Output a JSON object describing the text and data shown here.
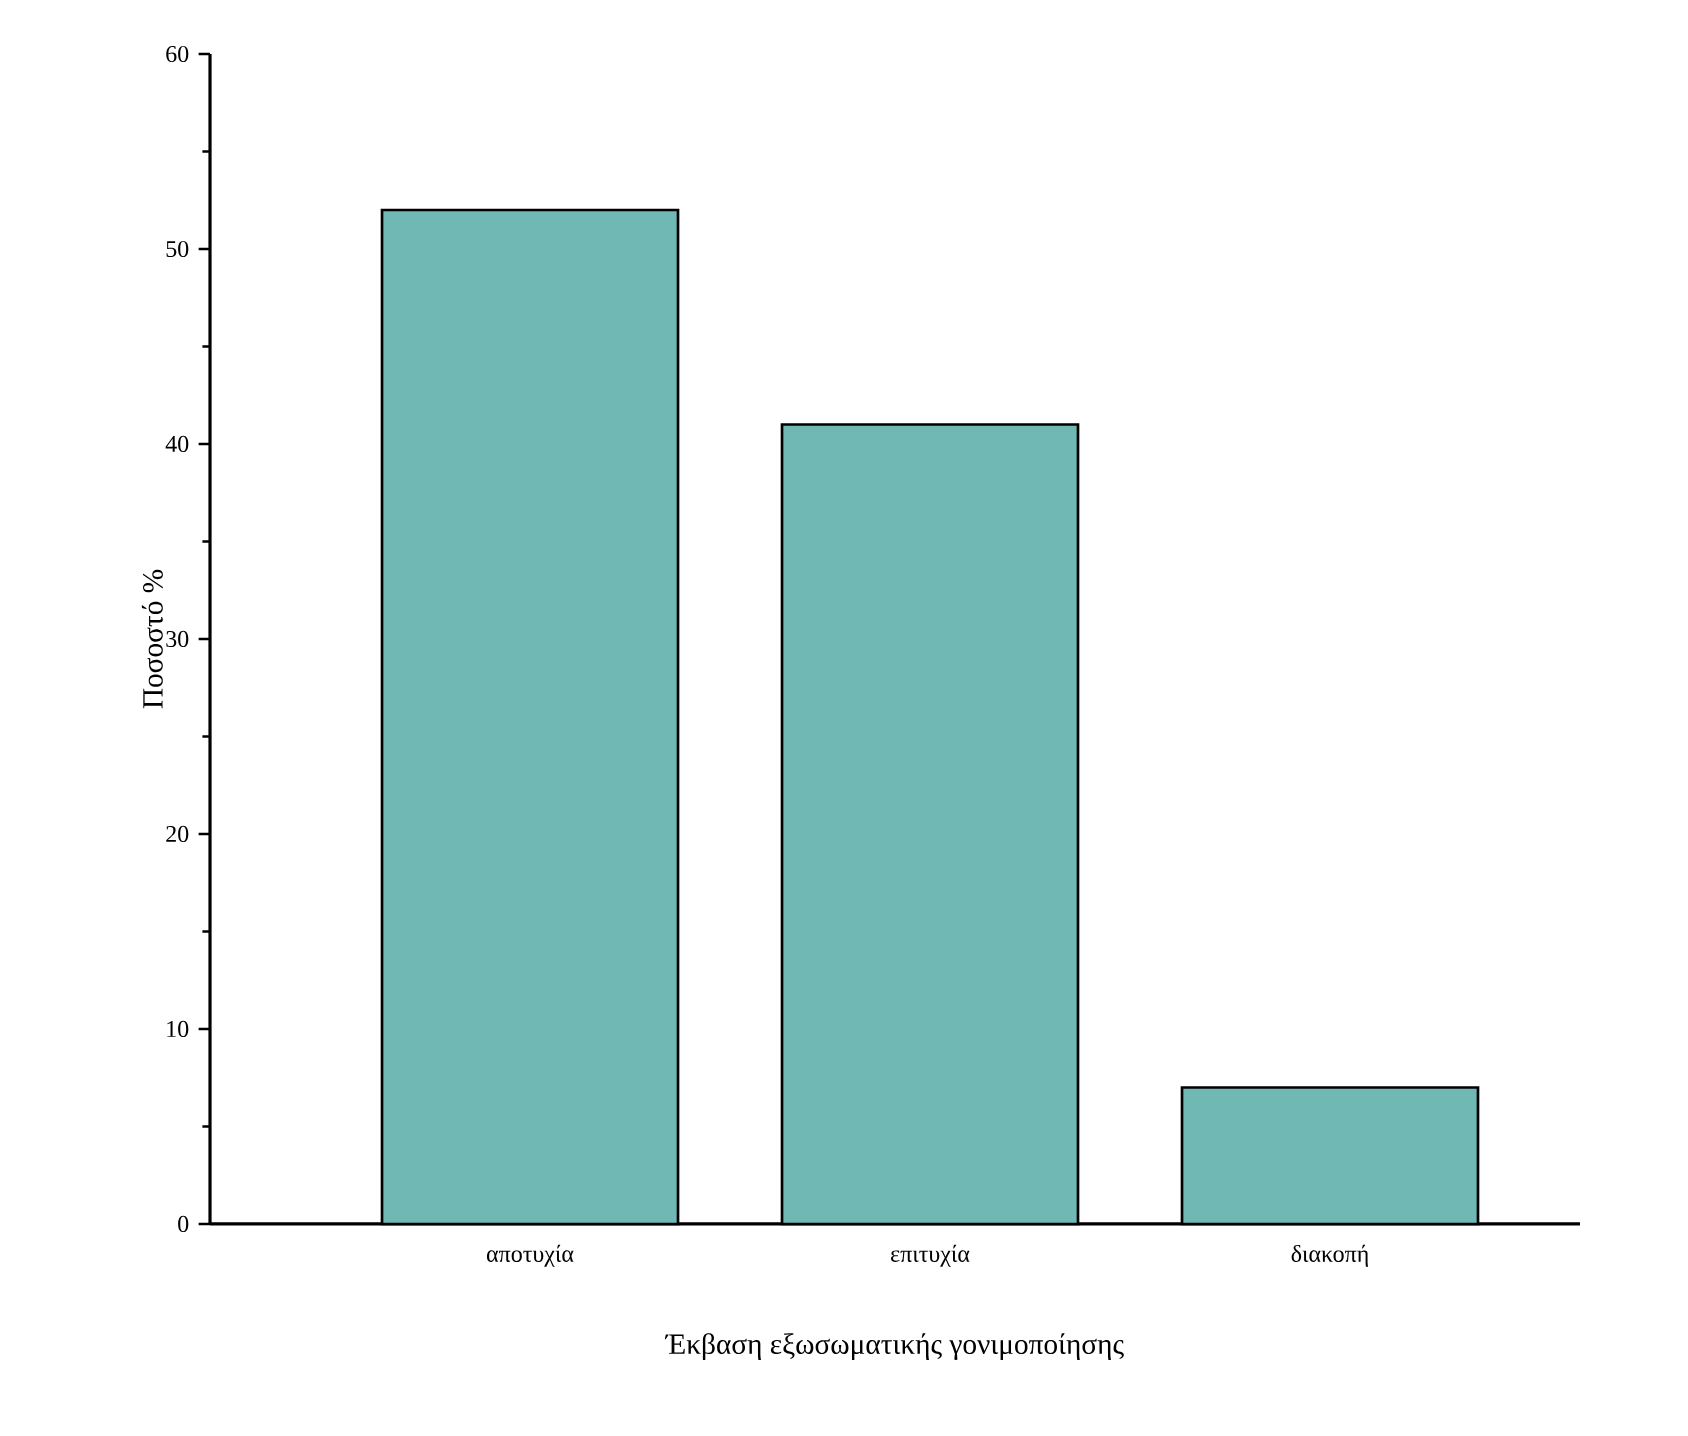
{
  "chart_data": {
    "type": "bar",
    "xlabel": "Έκβαση εξωσωματικής γονιμοποίησης",
    "ylabel": "Ποσοστό %",
    "categories": [
      "αποτυχία",
      "επιτυχία",
      "διακοπή"
    ],
    "values": [
      52,
      41,
      7
    ],
    "color": "#70b8b4",
    "ylim": [
      0,
      60
    ],
    "yticks": [
      0,
      10,
      20,
      30,
      40,
      50,
      60
    ],
    "grid": false
  }
}
